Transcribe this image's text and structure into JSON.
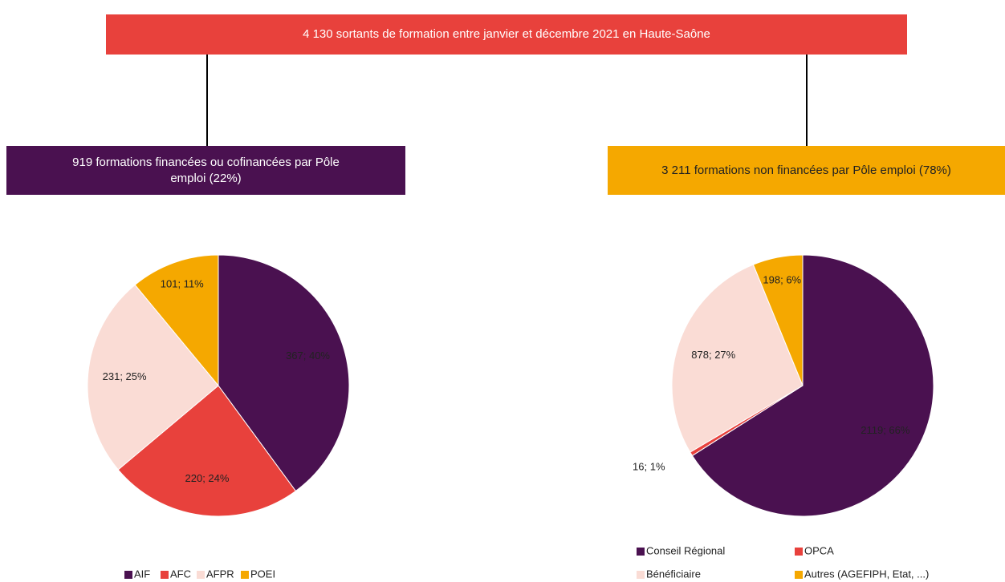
{
  "header": "4 130 sortants de formation entre janvier et décembre 2021 en Haute-Saône",
  "chart_data": [
    {
      "type": "pie",
      "title": "919 formations financées ou cofinancées par Pôle emploi (22%)",
      "categories": [
        "AIF",
        "AFC",
        "AFPR",
        "POEI"
      ],
      "values": [
        367,
        220,
        231,
        101
      ],
      "value_labels": [
        "367; 40%",
        "220; 24%",
        "231; 25%",
        "101; 11%"
      ],
      "colors": [
        "#4a1150",
        "#e8413c",
        "#fadcd5",
        "#f5a800"
      ]
    },
    {
      "type": "pie",
      "title": "3 211 formations non financées par Pôle emploi (78%)",
      "categories": [
        "Conseil Régional",
        "OPCA",
        "Bénéficiaire",
        "Autres (AGEFIPH, Etat, ...)"
      ],
      "values": [
        2119,
        16,
        878,
        198
      ],
      "value_labels": [
        "2119; 66%",
        "16; 1%",
        "878; 27%",
        "198; 6%"
      ],
      "colors": [
        "#4a1150",
        "#e8413c",
        "#fadcd5",
        "#f5a800"
      ]
    }
  ]
}
